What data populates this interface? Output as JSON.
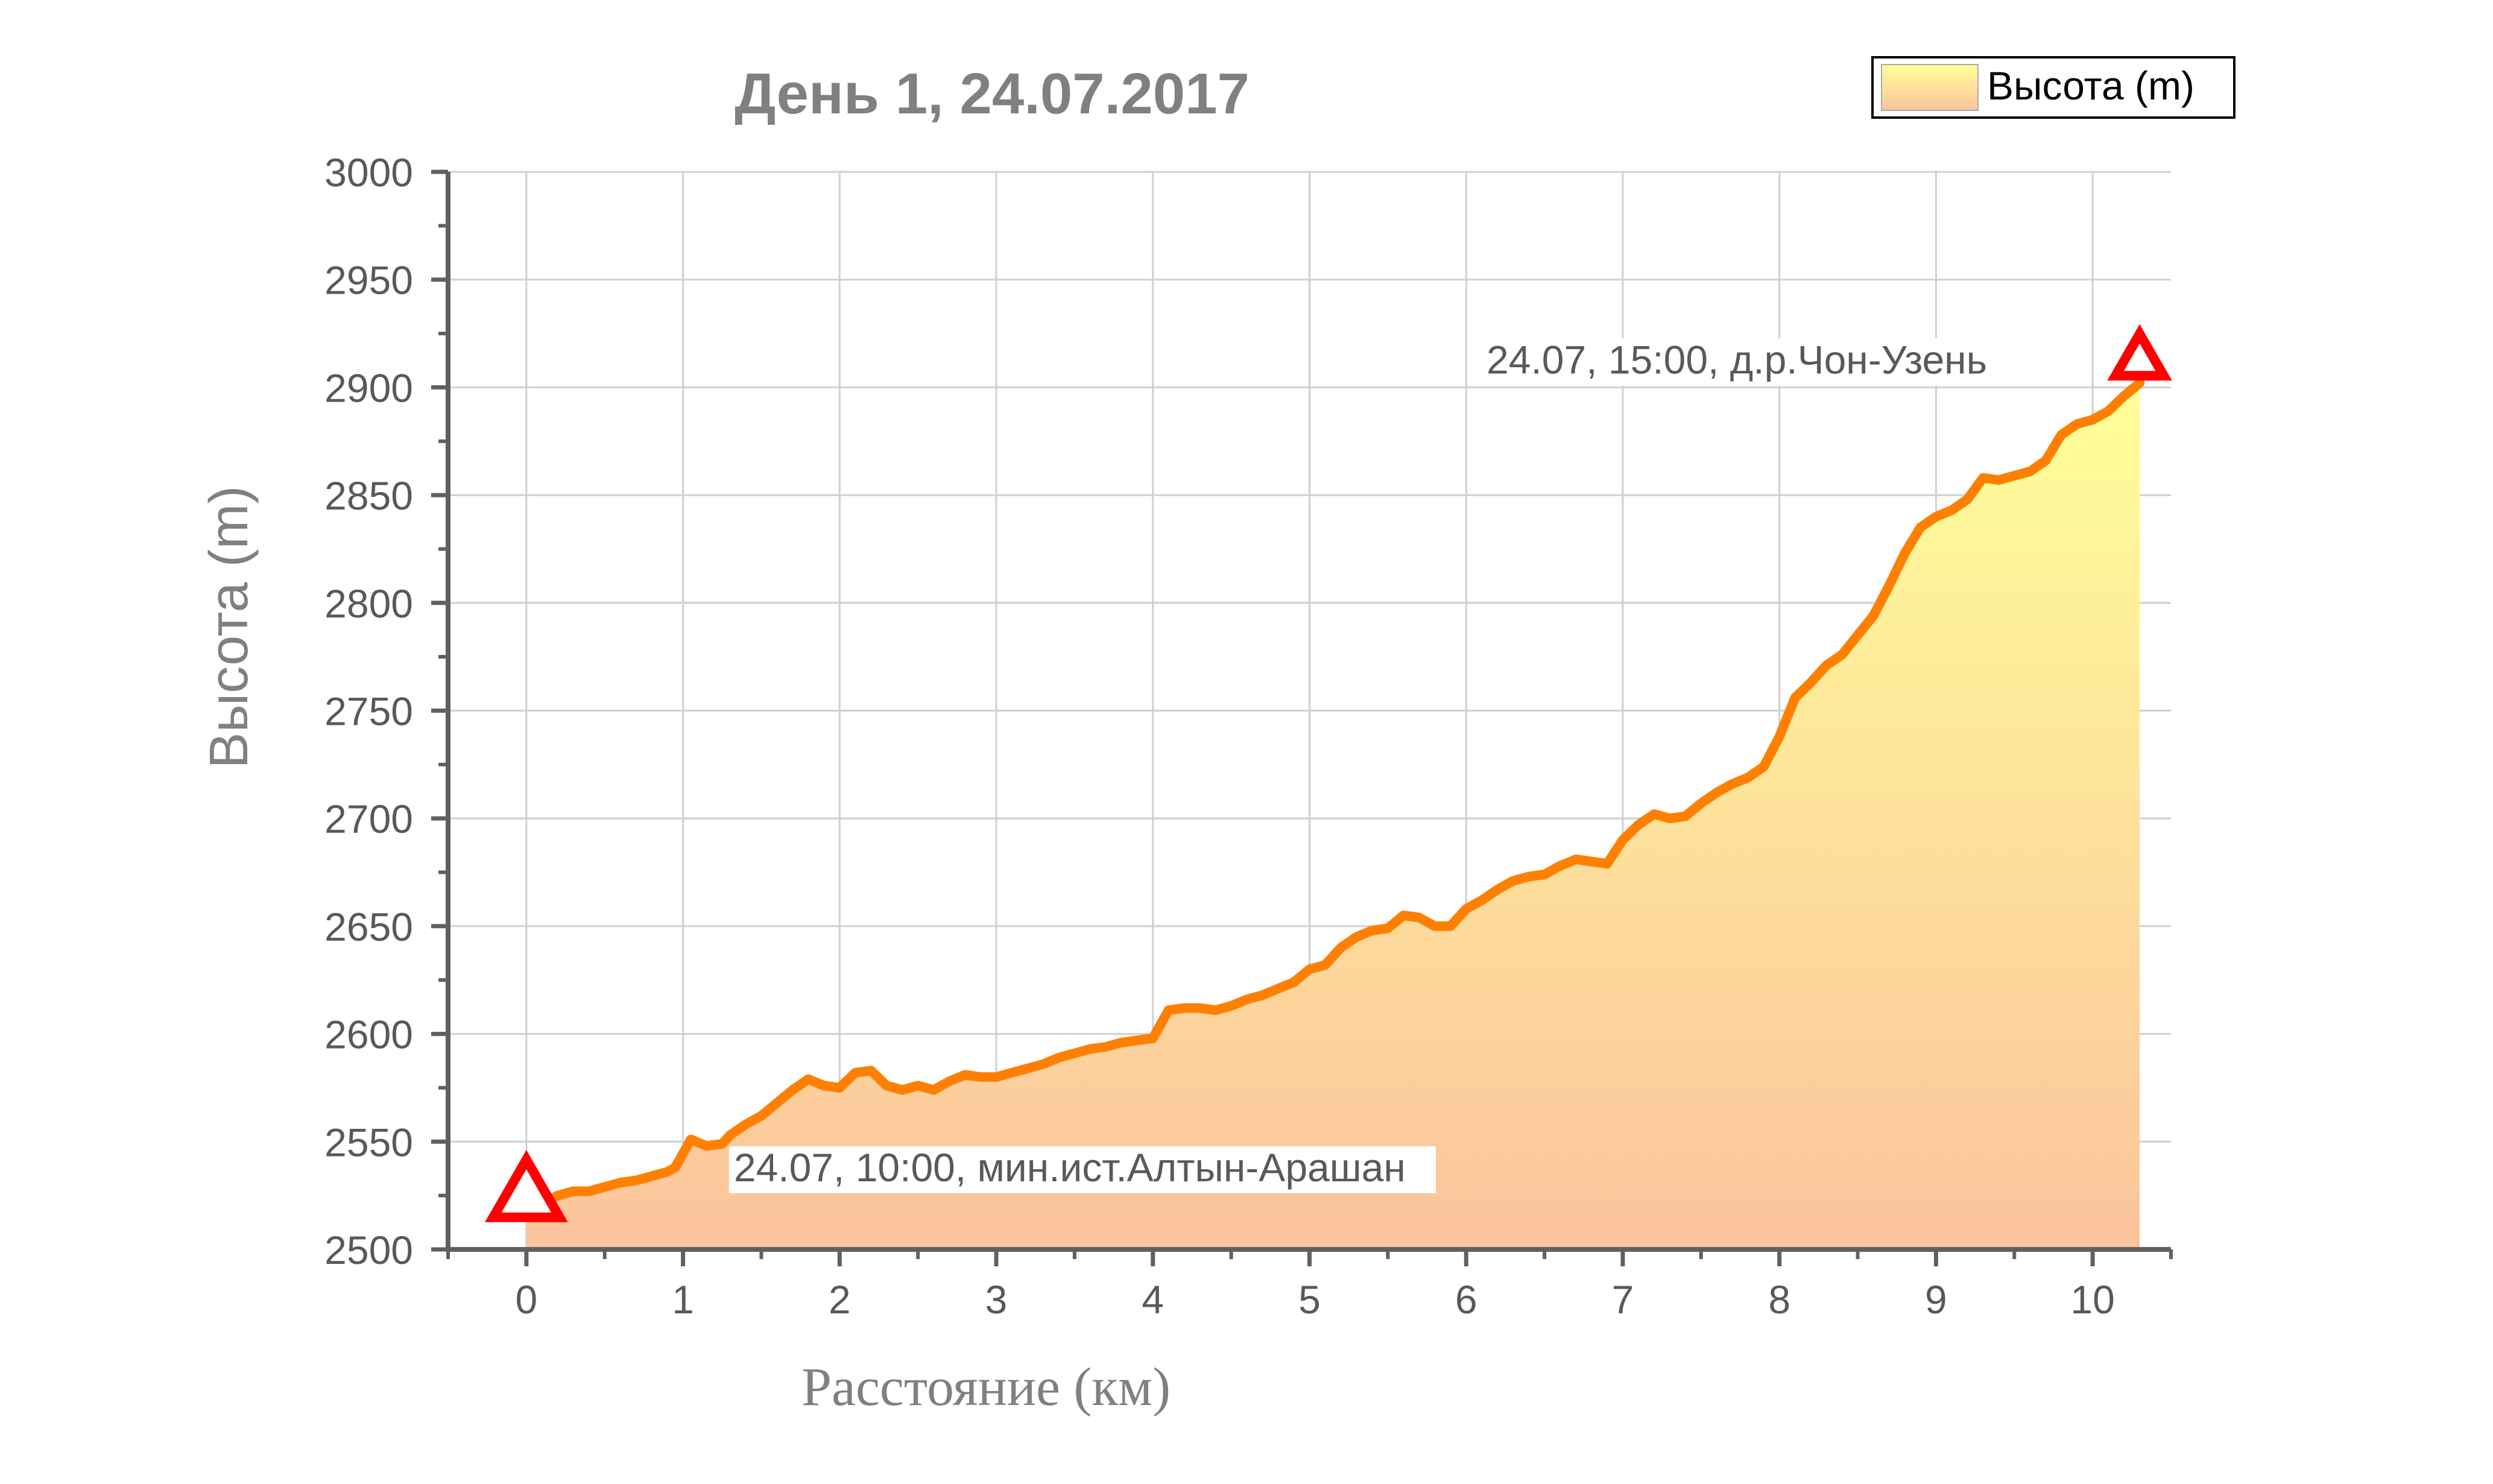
{
  "chart_data": {
    "type": "area",
    "title": "День 1, 24.07.2017",
    "xlabel": "Расстояние (км)",
    "ylabel": "Высота (m)",
    "xlim": [
      -0.5,
      10.5
    ],
    "ylim": [
      2500,
      3000
    ],
    "xticks": [
      0,
      1,
      2,
      3,
      4,
      5,
      6,
      7,
      8,
      9,
      10
    ],
    "yticks": [
      2500,
      2550,
      2600,
      2650,
      2700,
      2750,
      2800,
      2850,
      2900,
      2950,
      3000
    ],
    "grid": true,
    "legend": {
      "position": "top-right",
      "entries": [
        "Высота (m)"
      ]
    },
    "series": [
      {
        "name": "Высота (m)",
        "x": [
          0.0,
          0.1,
          0.2,
          0.3,
          0.4,
          0.5,
          0.6,
          0.7,
          0.8,
          0.9,
          0.95,
          1.05,
          1.15,
          1.25,
          1.3,
          1.4,
          1.5,
          1.6,
          1.7,
          1.8,
          1.9,
          2.0,
          2.1,
          2.2,
          2.3,
          2.4,
          2.5,
          2.6,
          2.7,
          2.8,
          2.9,
          3.0,
          3.1,
          3.2,
          3.3,
          3.4,
          3.5,
          3.6,
          3.7,
          3.8,
          3.9,
          4.0,
          4.1,
          4.2,
          4.3,
          4.4,
          4.5,
          4.6,
          4.7,
          4.8,
          4.9,
          5.0,
          5.1,
          5.2,
          5.3,
          5.4,
          5.5,
          5.6,
          5.7,
          5.8,
          5.9,
          6.0,
          6.1,
          6.2,
          6.3,
          6.4,
          6.5,
          6.6,
          6.7,
          6.8,
          6.9,
          7.0,
          7.1,
          7.2,
          7.3,
          7.4,
          7.5,
          7.6,
          7.7,
          7.8,
          7.9,
          8.0,
          8.1,
          8.2,
          8.3,
          8.4,
          8.5,
          8.6,
          8.7,
          8.8,
          8.9,
          9.0,
          9.1,
          9.2,
          9.3,
          9.4,
          9.5,
          9.6,
          9.7,
          9.8,
          9.9,
          10.0,
          10.1,
          10.2,
          10.3
        ],
        "y": [
          2516,
          2521,
          2525,
          2527,
          2527,
          2529,
          2531,
          2532,
          2534,
          2536,
          2538,
          2551,
          2548,
          2549,
          2553,
          2558,
          2562,
          2568,
          2574,
          2579,
          2576,
          2575,
          2582,
          2583,
          2576,
          2574,
          2576,
          2574,
          2578,
          2581,
          2580,
          2580,
          2582,
          2584,
          2586,
          2589,
          2591,
          2593,
          2594,
          2596,
          2597,
          2598,
          2611,
          2612,
          2612,
          2611,
          2613,
          2616,
          2618,
          2621,
          2624,
          2630,
          2632,
          2640,
          2645,
          2648,
          2649,
          2655,
          2654,
          2650,
          2650,
          2658,
          2662,
          2667,
          2671,
          2673,
          2674,
          2678,
          2681,
          2680,
          2679,
          2690,
          2697,
          2702,
          2700,
          2701,
          2707,
          2712,
          2716,
          2719,
          2724,
          2738,
          2756,
          2763,
          2771,
          2776,
          2785,
          2794,
          2808,
          2823,
          2835,
          2840,
          2843,
          2848,
          2858,
          2857,
          2859,
          2861,
          2866,
          2878,
          2883,
          2885,
          2889,
          2896,
          2902
        ]
      }
    ],
    "annotations": [
      {
        "text": "24.07, 10:00, мин.ист.Алтын-Арашан",
        "x": 0.0,
        "y": 2516
      },
      {
        "text": "24.07, 15:00, д.р.Чон-Узень",
        "x": 10.3,
        "y": 2902
      }
    ],
    "colors": {
      "line": "#ff8000",
      "fill_top": "#ffff99",
      "fill_bottom": "#fcc39c",
      "marker": "#ff0000",
      "grid": "#d0d0d0",
      "axis": "#606060",
      "text": "#595959"
    }
  }
}
